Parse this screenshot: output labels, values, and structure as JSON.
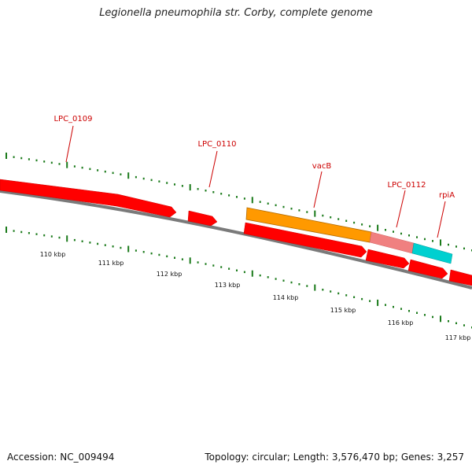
{
  "title": "Legionella pneumophila str. Corby, complete genome",
  "footer": {
    "accession": "Accession: NC_009494",
    "summary": "Topology: circular; Length: 3,576,470 bp; Genes: 3,257"
  },
  "colors": {
    "gene_default": "#ff0000",
    "gene_label": "#cc0000",
    "vacB": "#ff9900",
    "lpc0112": "#f08080",
    "rpiA": "#00d0d0",
    "backbone": "#808080",
    "ticks": "#1a7a1a"
  },
  "gene_labels": [
    "LPC_0109",
    "LPC_0110",
    "vacB",
    "LPC_0112",
    "rpiA"
  ],
  "kbp_ticks": [
    "110 kbp",
    "111 kbp",
    "112 kbp",
    "113 kbp",
    "114 kbp",
    "115 kbp",
    "116 kbp",
    "117 kbp"
  ]
}
